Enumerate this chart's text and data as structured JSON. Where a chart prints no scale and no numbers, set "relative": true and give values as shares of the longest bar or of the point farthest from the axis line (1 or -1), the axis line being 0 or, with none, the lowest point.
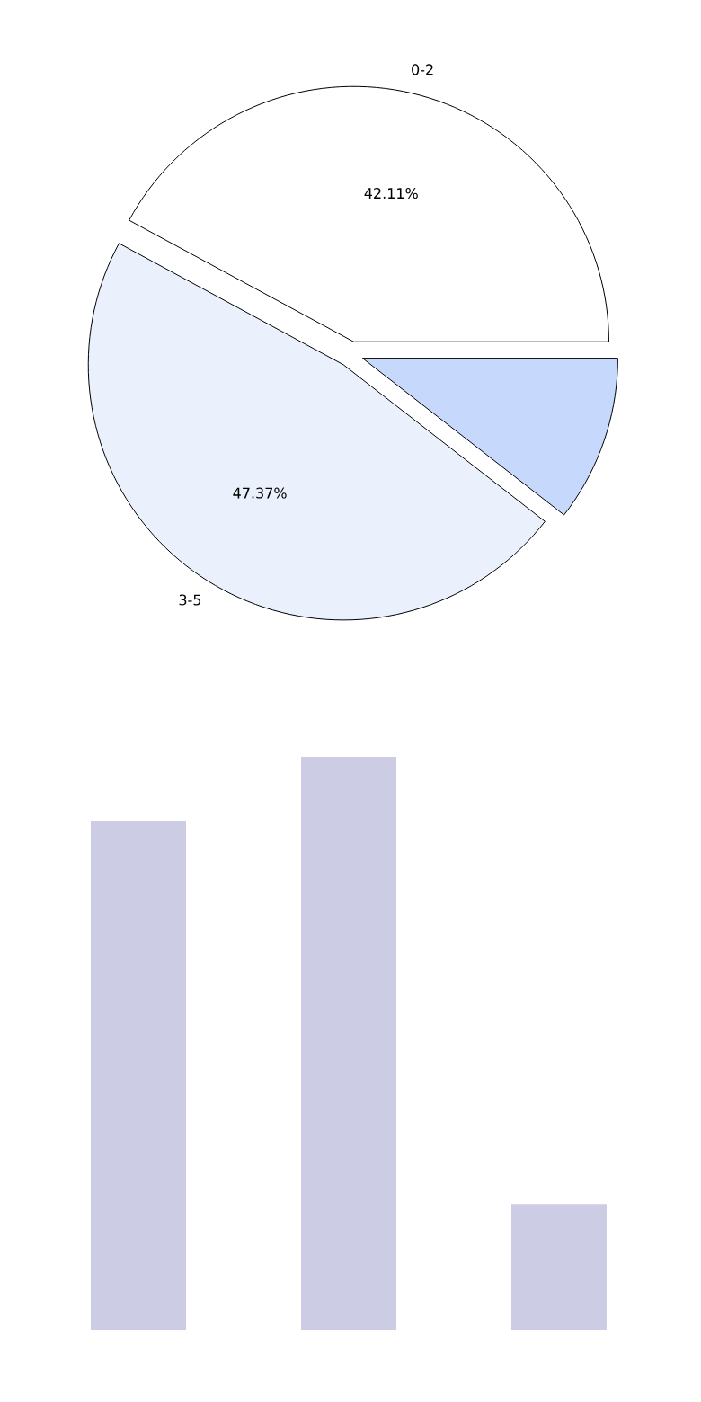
{
  "chart_data": [
    {
      "type": "pie",
      "categories": [
        "0-2",
        "3-5",
        null
      ],
      "values": [
        42.11,
        47.37,
        10.52
      ],
      "colors": [
        "#ffffff",
        "#eaf0fc",
        "#c6d9fd"
      ],
      "value_labels": [
        "42.11%",
        "47.37%",
        null
      ]
    },
    {
      "type": "bar",
      "categories": [
        null,
        null,
        null
      ],
      "values": [
        0.887,
        1,
        0.219
      ],
      "color": "#cccce4",
      "relative": true
    }
  ]
}
